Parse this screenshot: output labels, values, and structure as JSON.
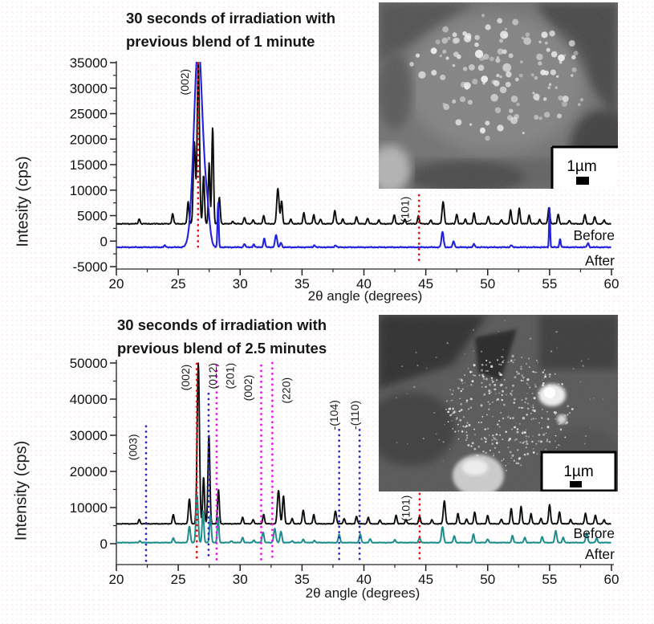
{
  "page": {
    "background": "#ffffff"
  },
  "chart_data": [
    {
      "id": "top",
      "type": "line",
      "title_lines": [
        "30 seconds of irradiation with",
        "previous blend of 1 minute"
      ],
      "xlabel": "2θ angle (degrees)",
      "ylabel": "Intesity (cps)",
      "xlim": [
        20,
        60
      ],
      "ylim": [
        -5000,
        35000
      ],
      "xticks": [
        20,
        25,
        30,
        35,
        40,
        45,
        50,
        55,
        60
      ],
      "xtick_minor_step": 2.5,
      "yticks": [
        -5000,
        0,
        5000,
        10000,
        15000,
        20000,
        25000,
        30000,
        35000
      ],
      "ytick_minor_step": 2500,
      "grid": false,
      "legend_position": "right-inside",
      "series": [
        {
          "name": "Before",
          "color": "#0d0d0d",
          "stroke_width": 1.9,
          "baseline": 3400,
          "peaks": [
            [
              21.85,
              1000,
              0.09
            ],
            [
              24.55,
              2000,
              0.1
            ],
            [
              25.8,
              4300,
              0.1
            ],
            [
              26.3,
              16000,
              0.12
            ],
            [
              26.62,
              31600,
              0.13
            ],
            [
              27.05,
              9500,
              0.1
            ],
            [
              27.5,
              12000,
              0.09
            ],
            [
              27.78,
              19000,
              0.1
            ],
            [
              28.32,
              5200,
              0.1
            ],
            [
              29.4,
              500,
              0.1
            ],
            [
              30.35,
              1300,
              0.1
            ],
            [
              31.05,
              800,
              0.1
            ],
            [
              31.9,
              1600,
              0.1
            ],
            [
              33.05,
              6900,
              0.13
            ],
            [
              33.35,
              4500,
              0.1
            ],
            [
              34.1,
              900,
              0.1
            ],
            [
              35.15,
              2200,
              0.1
            ],
            [
              35.95,
              1800,
              0.1
            ],
            [
              36.5,
              900,
              0.1
            ],
            [
              37.65,
              2600,
              0.11
            ],
            [
              38.3,
              1000,
              0.1
            ],
            [
              39.4,
              1400,
              0.1
            ],
            [
              40.3,
              1100,
              0.1
            ],
            [
              41.2,
              700,
              0.1
            ],
            [
              42.45,
              1800,
              0.1
            ],
            [
              43.3,
              900,
              0.1
            ],
            [
              44.4,
              1500,
              0.1
            ],
            [
              45.4,
              700,
              0.1
            ],
            [
              46.4,
              4300,
              0.12
            ],
            [
              47.5,
              1900,
              0.1
            ],
            [
              48.2,
              900,
              0.1
            ],
            [
              48.9,
              2100,
              0.1
            ],
            [
              50.05,
              1500,
              0.1
            ],
            [
              51.1,
              800,
              0.1
            ],
            [
              51.85,
              2700,
              0.1
            ],
            [
              52.55,
              3100,
              0.1
            ],
            [
              53.35,
              1700,
              0.1
            ],
            [
              54.2,
              900,
              0.1
            ],
            [
              54.95,
              3200,
              0.11
            ],
            [
              55.7,
              1900,
              0.1
            ],
            [
              56.6,
              700,
              0.1
            ],
            [
              57.85,
              1800,
              0.1
            ],
            [
              58.65,
              1400,
              0.1
            ],
            [
              59.4,
              700,
              0.1
            ]
          ]
        },
        {
          "name": "After",
          "color": "#2222dd",
          "stroke_width": 2.1,
          "baseline": -1200,
          "peaks": [
            [
              23.9,
              350,
              0.1
            ],
            [
              26.62,
              39500,
              0.5
            ],
            [
              27.35,
              5500,
              0.3
            ],
            [
              28.22,
              8800,
              0.07
            ],
            [
              30.35,
              700,
              0.09
            ],
            [
              31.1,
              600,
              0.09
            ],
            [
              31.95,
              1700,
              0.1
            ],
            [
              32.9,
              2400,
              0.12
            ],
            [
              33.3,
              900,
              0.1
            ],
            [
              36.0,
              400,
              0.1
            ],
            [
              37.7,
              400,
              0.1
            ],
            [
              46.35,
              3000,
              0.12
            ],
            [
              47.25,
              1200,
              0.1
            ],
            [
              48.9,
              600,
              0.1
            ],
            [
              51.9,
              400,
              0.1
            ],
            [
              55.0,
              7700,
              0.06
            ],
            [
              55.85,
              1600,
              0.08
            ],
            [
              58.1,
              800,
              0.1
            ]
          ]
        }
      ],
      "legend": [
        {
          "label": "Before",
          "y_cps": 200
        },
        {
          "label": "After",
          "y_cps": -4800
        }
      ],
      "annotations": [
        {
          "text": "(002)",
          "color": "#e90e0e",
          "line_x": 26.6,
          "line_y": [
            34800,
            -1800
          ],
          "label_x": 25.55,
          "label_y": 31200
        },
        {
          "text": "(101)",
          "color": "#e90e0e",
          "line_x": 44.45,
          "line_y": [
            9000,
            -4700
          ],
          "label_x": 43.35,
          "label_y": 6200
        }
      ],
      "inset": {
        "scale_label": "1µm"
      }
    },
    {
      "id": "bottom",
      "type": "line",
      "title_lines": [
        "30 seconds of irradiation with",
        "previous blend of 2.5 minutes"
      ],
      "xlabel": "2θ angle (degrees)",
      "ylabel": "Intensity (cps)",
      "xlim": [
        20,
        60
      ],
      "ylim": [
        0,
        50000
      ],
      "xticks": [
        20,
        25,
        30,
        35,
        40,
        45,
        50,
        55,
        60
      ],
      "xtick_minor_step": 2.5,
      "yticks": [
        0,
        10000,
        20000,
        30000,
        40000,
        50000
      ],
      "ytick_minor_step": 5000,
      "grid": false,
      "legend_position": "right-inside",
      "series": [
        {
          "name": "Before",
          "color": "#0d0d0d",
          "stroke_width": 1.9,
          "baseline": 5500,
          "peaks": [
            [
              21.85,
              1300,
              0.09
            ],
            [
              24.6,
              2600,
              0.1
            ],
            [
              25.9,
              7000,
              0.11
            ],
            [
              26.62,
              44500,
              0.13
            ],
            [
              27.05,
              13000,
              0.1
            ],
            [
              27.48,
              24500,
              0.11
            ],
            [
              28.25,
              9500,
              0.1
            ],
            [
              30.2,
              1800,
              0.1
            ],
            [
              31.05,
              1200,
              0.1
            ],
            [
              31.9,
              2600,
              0.1
            ],
            [
              33.1,
              9300,
              0.13
            ],
            [
              33.5,
              7800,
              0.11
            ],
            [
              34.2,
              1500,
              0.1
            ],
            [
              35.1,
              3800,
              0.11
            ],
            [
              35.95,
              2600,
              0.1
            ],
            [
              37.7,
              3600,
              0.11
            ],
            [
              38.4,
              1500,
              0.1
            ],
            [
              39.4,
              2100,
              0.1
            ],
            [
              40.35,
              1800,
              0.1
            ],
            [
              41.3,
              1000,
              0.1
            ],
            [
              42.6,
              2400,
              0.1
            ],
            [
              43.4,
              1200,
              0.1
            ],
            [
              44.5,
              2100,
              0.1
            ],
            [
              45.5,
              1100,
              0.1
            ],
            [
              46.5,
              6300,
              0.12
            ],
            [
              47.6,
              2900,
              0.1
            ],
            [
              48.3,
              1400,
              0.1
            ],
            [
              48.95,
              3300,
              0.1
            ],
            [
              50.0,
              2400,
              0.1
            ],
            [
              51.1,
              1300,
              0.1
            ],
            [
              51.9,
              4300,
              0.1
            ],
            [
              52.7,
              4800,
              0.1
            ],
            [
              53.5,
              2800,
              0.1
            ],
            [
              54.3,
              1500,
              0.1
            ],
            [
              55.0,
              5300,
              0.11
            ],
            [
              55.8,
              3300,
              0.1
            ],
            [
              56.7,
              1200,
              0.1
            ],
            [
              57.9,
              2900,
              0.1
            ],
            [
              58.7,
              2400,
              0.1
            ],
            [
              59.4,
              1100,
              0.1
            ]
          ]
        },
        {
          "name": "After",
          "color": "#1f8c8c",
          "stroke_width": 2.0,
          "baseline": 300,
          "peaks": [
            [
              21.9,
              500,
              0.09
            ],
            [
              24.6,
              1300,
              0.1
            ],
            [
              25.9,
              4600,
              0.11
            ],
            [
              26.52,
              13200,
              0.12
            ],
            [
              27.0,
              8800,
              0.1
            ],
            [
              27.6,
              7600,
              0.1
            ],
            [
              28.22,
              7100,
              0.09
            ],
            [
              29.3,
              500,
              0.1
            ],
            [
              30.2,
              1400,
              0.1
            ],
            [
              31.1,
              700,
              0.1
            ],
            [
              31.85,
              2900,
              0.11
            ],
            [
              32.8,
              3900,
              0.12
            ],
            [
              33.3,
              3100,
              0.11
            ],
            [
              34.2,
              500,
              0.1
            ],
            [
              35.1,
              900,
              0.1
            ],
            [
              36.0,
              600,
              0.1
            ],
            [
              38.0,
              2300,
              0.1
            ],
            [
              39.7,
              2400,
              0.1
            ],
            [
              40.5,
              1000,
              0.1
            ],
            [
              42.5,
              800,
              0.1
            ],
            [
              44.5,
              1400,
              0.1
            ],
            [
              46.35,
              4300,
              0.12
            ],
            [
              47.3,
              1900,
              0.1
            ],
            [
              48.85,
              2300,
              0.1
            ],
            [
              50.0,
              1000,
              0.1
            ],
            [
              52.0,
              1900,
              0.1
            ],
            [
              53.0,
              1400,
              0.1
            ],
            [
              54.4,
              1600,
              0.1
            ],
            [
              55.5,
              3300,
              0.11
            ],
            [
              56.1,
              1400,
              0.1
            ],
            [
              58.0,
              2700,
              0.11
            ],
            [
              58.8,
              1200,
              0.1
            ]
          ]
        }
      ],
      "legend": [
        {
          "label": "Before",
          "y_cps": 1600
        },
        {
          "label": "After",
          "y_cps": -4200
        }
      ],
      "annotations": [
        {
          "text": "(003)",
          "color": "#2828cc",
          "line_x": 22.4,
          "line_y": [
            32500,
            -5600
          ],
          "label_x": 21.35,
          "label_y": 26700
        },
        {
          "text": "(002)",
          "color": "#e90e0e",
          "line_x": 26.5,
          "line_y": [
            49800,
            -5000
          ],
          "label_x": 25.6,
          "label_y": 46000
        },
        {
          "text": "(012)",
          "color": "#2828cc",
          "line_x": 27.45,
          "line_y": [
            41500,
            -4400
          ],
          "label_x": 27.8,
          "label_y": 46400
        },
        {
          "text": "(201)",
          "color": "#f010f0",
          "line_x": 28.1,
          "line_y": [
            49300,
            -4400
          ],
          "label_x": 29.2,
          "label_y": 46400
        },
        {
          "text": "(002)",
          "color": "#f010f0",
          "line_x": 31.7,
          "line_y": [
            49300,
            -4400
          ],
          "label_x": 30.65,
          "label_y": 43100
        },
        {
          "text": "(220)",
          "color": "#f010f0",
          "line_x": 32.6,
          "line_y": [
            50000,
            -4400
          ],
          "label_x": 33.75,
          "label_y": 42400
        },
        {
          "text": "-(104)",
          "color": "#2828cc",
          "line_x": 38.0,
          "line_y": [
            31500,
            -5300
          ],
          "label_x": 37.6,
          "label_y": 35600
        },
        {
          "text": "-(110)",
          "color": "#2828cc",
          "line_x": 39.65,
          "line_y": [
            31500,
            -5300
          ],
          "label_x": 39.3,
          "label_y": 35600
        },
        {
          "text": "(101)",
          "color": "#e90e0e",
          "line_x": 44.5,
          "line_y": [
            13800,
            -4200
          ],
          "label_x": 43.4,
          "label_y": 9800
        }
      ],
      "inset": {
        "scale_label": "1µm"
      }
    }
  ]
}
